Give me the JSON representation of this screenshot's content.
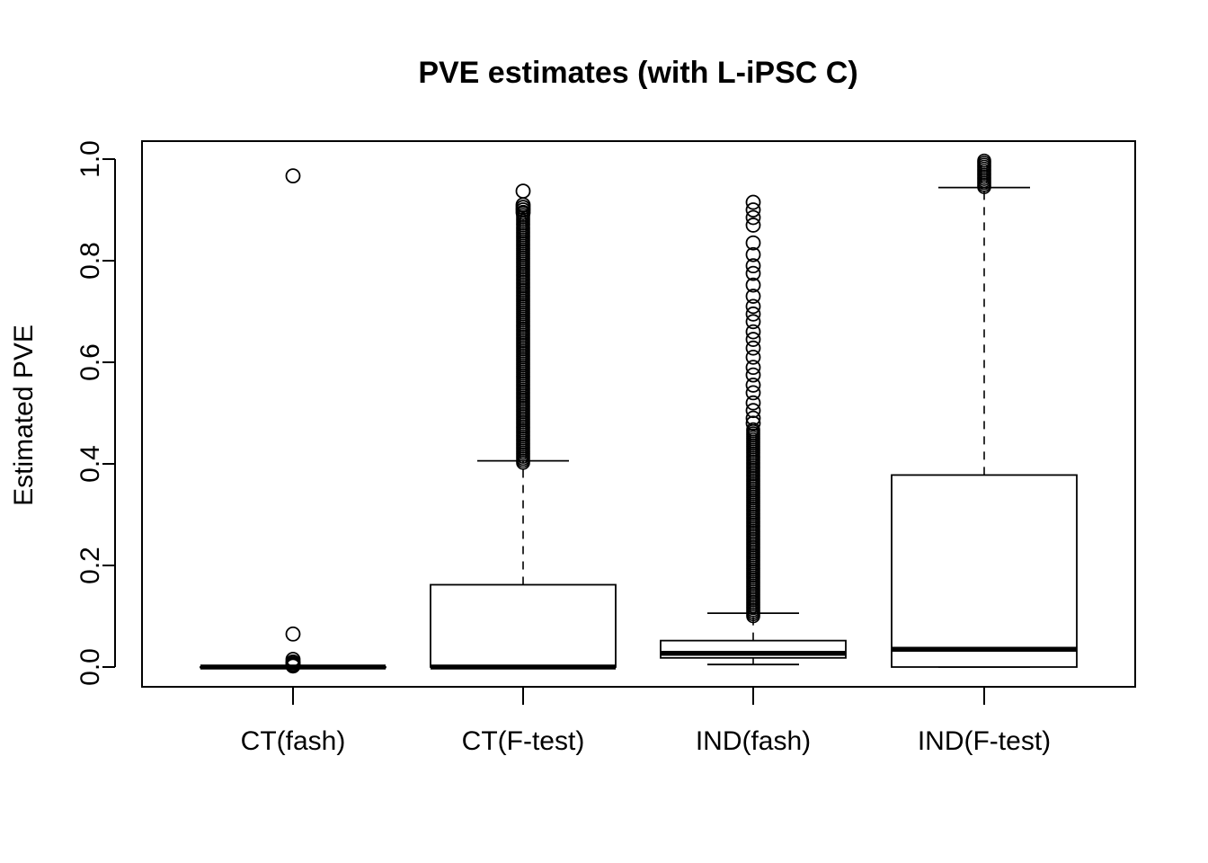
{
  "chart_data": {
    "type": "box",
    "title": "PVE estimates (with L-iPSC C)",
    "xlabel": "",
    "ylabel": "Estimated PVE",
    "ylim": [
      -0.04,
      1.035
    ],
    "yticks": [
      0.0,
      0.2,
      0.4,
      0.6,
      0.8,
      1.0
    ],
    "ytick_labels": [
      "0.0",
      "0.2",
      "0.4",
      "0.6",
      "0.8",
      "1.0"
    ],
    "grid": false,
    "legend": "none",
    "categories": [
      "CT(fash)",
      "CT(F-test)",
      "IND(fash)",
      "IND(F-test)"
    ],
    "boxes": [
      {
        "category": "CT(fash)",
        "whisker_low": 0.0,
        "q1": 0.0,
        "median": 0.0,
        "q3": 0.0,
        "whisker_high": 0.0,
        "outliers": [
          0.967,
          0.065,
          0.015,
          0.01,
          0.008,
          0.005,
          0.003,
          0.002
        ]
      },
      {
        "category": "CT(F-test)",
        "whisker_low": 0.0,
        "q1": 0.0,
        "median": 0.0,
        "q3": 0.162,
        "whisker_high": 0.406,
        "outlier_band": [
          0.402,
          0.895
        ],
        "outliers": [
          0.937,
          0.91,
          0.905,
          0.9,
          0.895
        ]
      },
      {
        "category": "IND(fash)",
        "whisker_low": 0.005,
        "q1": 0.018,
        "median": 0.027,
        "q3": 0.052,
        "whisker_high": 0.106,
        "outlier_band": [
          0.1,
          0.47
        ],
        "outliers": [
          0.915,
          0.9,
          0.885,
          0.87,
          0.835,
          0.812,
          0.79,
          0.775,
          0.752,
          0.73,
          0.71,
          0.695,
          0.68,
          0.66,
          0.645,
          0.628,
          0.61,
          0.59,
          0.575,
          0.555,
          0.54,
          0.52,
          0.505,
          0.49,
          0.48
        ]
      },
      {
        "category": "IND(F-test)",
        "whisker_low": 0.0,
        "q1": 0.0,
        "median": 0.035,
        "q3": 0.378,
        "whisker_high": 0.944,
        "outlier_band": [
          0.945,
          0.997
        ],
        "outliers": []
      }
    ]
  }
}
